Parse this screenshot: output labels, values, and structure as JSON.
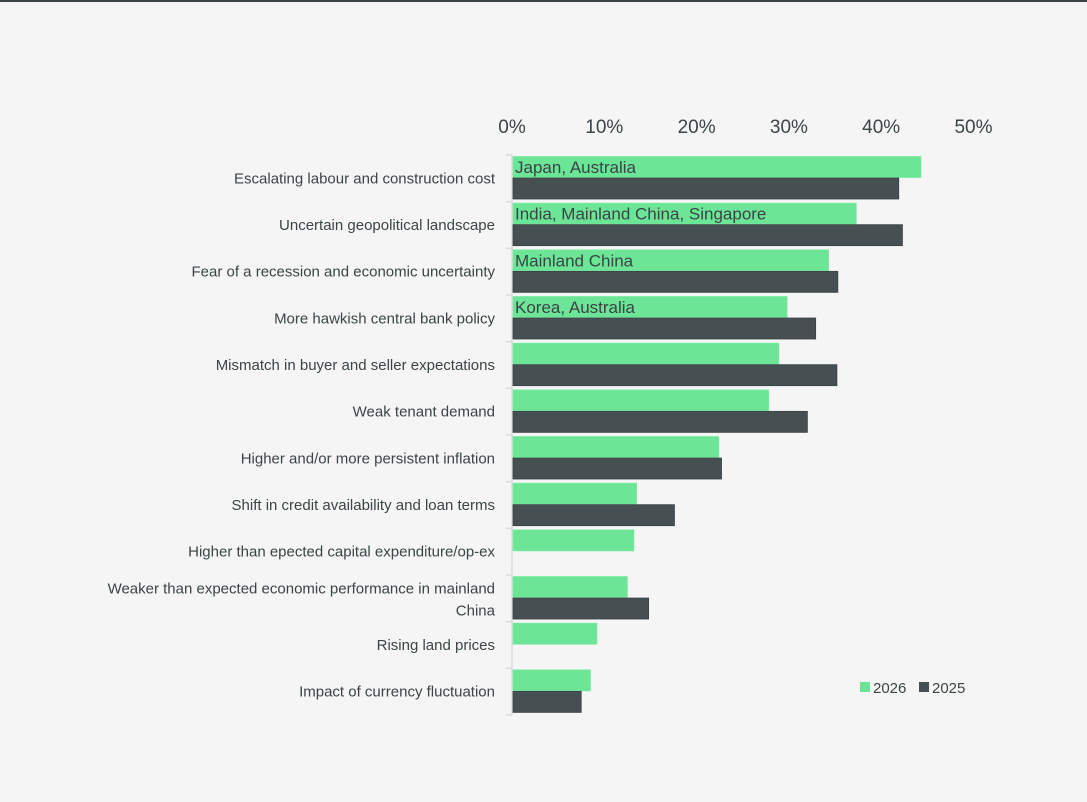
{
  "chart_data": {
    "type": "bar",
    "orientation": "horizontal",
    "categories": [
      "Escalating labour and construction cost",
      "Uncertain geopolitical landscape",
      "Fear of a recession and economic uncertainty",
      "More hawkish central bank policy",
      "Mismatch in buyer and seller expectations",
      "Weak tenant demand",
      "Higher and/or more persistent inflation",
      "Shift in credit availability and loan terms",
      "Higher than epected capital expenditure/op-ex",
      "Weaker than expected economic performance in mainland China",
      "Rising land prices",
      "Impact of currency fluctuation"
    ],
    "series": [
      {
        "name": "2026",
        "color": "#6ce597",
        "values": [
          44.3,
          37.3,
          34.3,
          29.8,
          28.9,
          27.8,
          22.4,
          13.5,
          13.2,
          12.5,
          9.2,
          8.5
        ]
      },
      {
        "name": "2025",
        "color": "#465052",
        "values": [
          41.9,
          42.3,
          35.3,
          32.9,
          35.2,
          32.0,
          22.7,
          17.6,
          null,
          14.8,
          null,
          7.5
        ]
      }
    ],
    "annotations": [
      "Japan, Australia",
      "India, Mainland China, Singapore",
      "Mainland China",
      "Korea, Australia"
    ],
    "xticks": [
      "0%",
      "10%",
      "20%",
      "30%",
      "40%",
      "50%"
    ],
    "xlim": [
      0,
      50
    ],
    "xaxis_position": "top",
    "grid": false,
    "legend_position": "bottom-right",
    "title": "",
    "xlabel": "",
    "ylabel": ""
  }
}
